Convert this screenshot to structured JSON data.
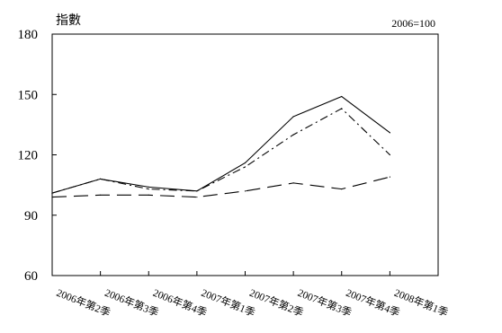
{
  "chart_data": {
    "type": "line",
    "title": "",
    "ylabel": "指數",
    "xlabel": "",
    "base_note": "2006=100",
    "categories": [
      "2006年第2季",
      "2006年第3季",
      "2006年第4季",
      "2007年第1季",
      "2007年第2季",
      "2007年第3季",
      "2007年第4季",
      "2008年第1季"
    ],
    "ylim": [
      60,
      180
    ],
    "yticks": [
      60,
      90,
      120,
      150,
      180
    ],
    "grid": false,
    "series": [
      {
        "line_style": "solid",
        "color": "#000000",
        "values": [
          101,
          108,
          104,
          102,
          116,
          139,
          149,
          131
        ]
      },
      {
        "line_style": "dash-dot",
        "color": "#000000",
        "values": [
          101,
          108,
          103,
          102,
          114,
          130,
          143,
          120
        ]
      },
      {
        "line_style": "long-dash",
        "color": "#000000",
        "values": [
          99,
          100,
          100,
          99,
          102,
          106,
          103,
          109
        ]
      }
    ]
  }
}
